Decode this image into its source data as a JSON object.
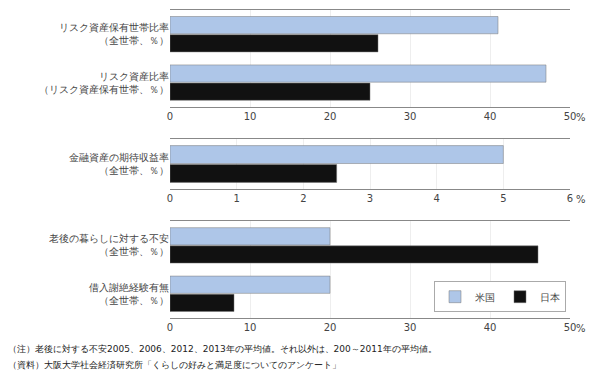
{
  "chart_data": [
    {
      "type": "bar",
      "orientation": "horizontal",
      "categories": [
        "リスク資産保有世帯比率\n（全世帯、％）",
        "リスク資産比率\n（リスク資産保有世帯、％）"
      ],
      "series": [
        {
          "name": "米国",
          "color": "#aec6e8",
          "values": [
            41,
            47
          ]
        },
        {
          "name": "日本",
          "color": "#111111",
          "values": [
            26,
            25
          ]
        }
      ],
      "xlim": [
        0,
        50
      ],
      "xticks": [
        0,
        10,
        20,
        30,
        40,
        50
      ],
      "xlabel": "%",
      "grid": true,
      "legend": false
    },
    {
      "type": "bar",
      "orientation": "horizontal",
      "categories": [
        "金融資産の期待収益率\n（全世帯、％）"
      ],
      "series": [
        {
          "name": "米国",
          "color": "#aec6e8",
          "values": [
            5.0
          ]
        },
        {
          "name": "日本",
          "color": "#111111",
          "values": [
            2.5
          ]
        }
      ],
      "xlim": [
        0,
        6
      ],
      "xticks": [
        0,
        1,
        2,
        3,
        4,
        5,
        6
      ],
      "xlabel": "%",
      "grid": true,
      "legend": false
    },
    {
      "type": "bar",
      "orientation": "horizontal",
      "categories": [
        "老後の暮らしに対する不安\n（全世帯、％）",
        "借入謝絶経験有無\n（全世帯、％）"
      ],
      "series": [
        {
          "name": "米国",
          "color": "#aec6e8",
          "values": [
            20,
            20
          ]
        },
        {
          "name": "日本",
          "color": "#111111",
          "values": [
            46,
            8
          ]
        }
      ],
      "xlim": [
        0,
        50
      ],
      "xticks": [
        0,
        10,
        20,
        30,
        40,
        50
      ],
      "xlabel": "%",
      "grid": true,
      "legend": "lower right",
      "annotations": [
        "（注）老後に対する不安2005、2006、2012、2013年の平均値。それ以外は、200～2011年の平均値。",
        "（資料）大阪大学社会経済研究所「くらしの好みと満足度についてのアンケート」"
      ]
    }
  ]
}
